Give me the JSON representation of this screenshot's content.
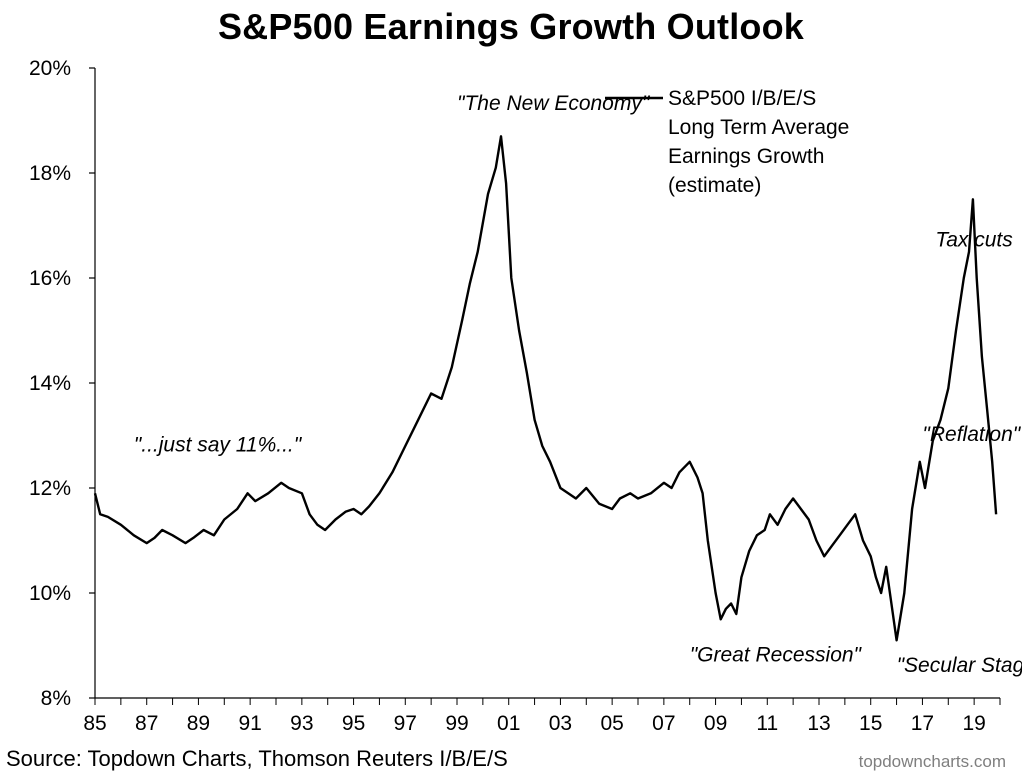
{
  "title": "S&P500 Earnings Growth Outlook",
  "source": "Source: Topdown Charts, Thomson Reuters I/B/E/S",
  "watermark": "topdowncharts.com",
  "legend": {
    "lines": [
      "S&P500 I/B/E/S",
      "Long Term Average",
      "Earnings Growth",
      "(estimate)"
    ]
  },
  "annotations": [
    {
      "text": "\"...just say 11%...\"",
      "x": 1986.5,
      "y": 12.7
    },
    {
      "text": "\"The New Economy\"",
      "x": 1999.0,
      "y": 19.2
    },
    {
      "text": "\"Great Recession\"",
      "x": 2008.0,
      "y": 8.7
    },
    {
      "text": "\"Secular Stagnation\"",
      "x": 2016.0,
      "y": 8.5
    },
    {
      "text": "\"Reflation\"",
      "x": 2017.0,
      "y": 12.9
    },
    {
      "text": "Tax cuts",
      "x": 2017.5,
      "y": 16.6
    }
  ],
  "chart_data": {
    "type": "line",
    "title": "S&P500 Earnings Growth Outlook",
    "xlabel": "",
    "ylabel": "",
    "ylim": [
      8,
      20
    ],
    "xlim": [
      1985,
      2020
    ],
    "y_ticks": [
      "8%",
      "10%",
      "12%",
      "14%",
      "16%",
      "18%",
      "20%"
    ],
    "y_tick_values": [
      8,
      10,
      12,
      14,
      16,
      18,
      20
    ],
    "x_ticks": [
      "85",
      "87",
      "89",
      "91",
      "93",
      "95",
      "97",
      "99",
      "01",
      "03",
      "05",
      "07",
      "09",
      "11",
      "13",
      "15",
      "17",
      "19"
    ],
    "x_tick_values": [
      1985,
      1987,
      1989,
      1991,
      1993,
      1995,
      1997,
      1999,
      2001,
      2003,
      2005,
      2007,
      2009,
      2011,
      2013,
      2015,
      2017,
      2019
    ],
    "grid": false,
    "legend_position": "top-right",
    "series": [
      {
        "name": "S&P500 I/B/E/S Long Term Average Earnings Growth (estimate)",
        "color": "#000000",
        "x": [
          1985.0,
          1985.2,
          1985.5,
          1986.0,
          1986.5,
          1987.0,
          1987.3,
          1987.6,
          1988.0,
          1988.5,
          1988.8,
          1989.2,
          1989.6,
          1990.0,
          1990.5,
          1990.9,
          1991.2,
          1991.7,
          1992.2,
          1992.5,
          1993.0,
          1993.3,
          1993.6,
          1993.9,
          1994.3,
          1994.7,
          1995.0,
          1995.3,
          1995.6,
          1996.0,
          1996.5,
          1997.0,
          1997.5,
          1998.0,
          1998.4,
          1998.8,
          1999.2,
          1999.5,
          1999.8,
          2000.2,
          2000.5,
          2000.7,
          2000.9,
          2001.1,
          2001.4,
          2001.7,
          2002.0,
          2002.3,
          2002.6,
          2003.0,
          2003.3,
          2003.6,
          2004.0,
          2004.5,
          2005.0,
          2005.3,
          2005.7,
          2006.0,
          2006.5,
          2007.0,
          2007.3,
          2007.6,
          2008.0,
          2008.3,
          2008.5,
          2008.7,
          2009.0,
          2009.2,
          2009.4,
          2009.6,
          2009.8,
          2010.0,
          2010.3,
          2010.6,
          2010.9,
          2011.1,
          2011.4,
          2011.7,
          2012.0,
          2012.3,
          2012.6,
          2012.9,
          2013.2,
          2013.5,
          2013.8,
          2014.1,
          2014.4,
          2014.7,
          2015.0,
          2015.2,
          2015.4,
          2015.6,
          2015.8,
          2016.0,
          2016.3,
          2016.6,
          2016.9,
          2017.1,
          2017.4,
          2017.7,
          2018.0,
          2018.3,
          2018.6,
          2018.8,
          2018.95,
          2019.1,
          2019.3,
          2019.5,
          2019.7,
          2019.85
        ],
        "values": [
          11.9,
          11.5,
          11.45,
          11.3,
          11.1,
          10.95,
          11.05,
          11.2,
          11.1,
          10.95,
          11.05,
          11.2,
          11.1,
          11.4,
          11.6,
          11.9,
          11.75,
          11.9,
          12.1,
          12.0,
          11.9,
          11.5,
          11.3,
          11.2,
          11.4,
          11.55,
          11.6,
          11.5,
          11.65,
          11.9,
          12.3,
          12.8,
          13.3,
          13.8,
          13.7,
          14.3,
          15.2,
          15.9,
          16.5,
          17.6,
          18.1,
          18.7,
          17.8,
          16.0,
          15.0,
          14.2,
          13.3,
          12.8,
          12.5,
          12.0,
          11.9,
          11.8,
          12.0,
          11.7,
          11.6,
          11.8,
          11.9,
          11.8,
          11.9,
          12.1,
          12.0,
          12.3,
          12.5,
          12.2,
          11.9,
          11.0,
          10.0,
          9.5,
          9.7,
          9.8,
          9.6,
          10.3,
          10.8,
          11.1,
          11.2,
          11.5,
          11.3,
          11.6,
          11.8,
          11.6,
          11.4,
          11.0,
          10.7,
          10.9,
          11.1,
          11.3,
          11.5,
          11.0,
          10.7,
          10.3,
          10.0,
          10.5,
          9.8,
          9.1,
          10.0,
          11.6,
          12.5,
          12.0,
          12.9,
          13.3,
          13.9,
          15.0,
          16.0,
          16.5,
          17.5,
          16.0,
          14.5,
          13.5,
          12.5,
          11.5
        ]
      }
    ]
  }
}
